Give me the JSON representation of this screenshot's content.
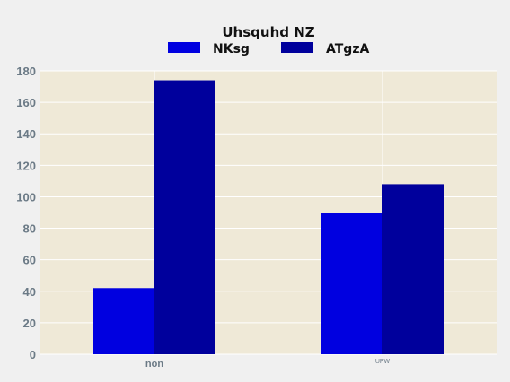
{
  "chart_data": {
    "type": "bar",
    "title": "Uhsquhd NZ",
    "xlabel": "",
    "ylabel": "",
    "categories": [
      "non",
      "UPW"
    ],
    "series": [
      {
        "name": "NKsg",
        "values": [
          42,
          90
        ],
        "color": "#0000e0"
      },
      {
        "name": "ATgzA",
        "values": [
          174,
          108
        ],
        "color": "#00009c"
      }
    ],
    "ylim": [
      0,
      180
    ],
    "yticks": [
      0,
      20,
      40,
      60,
      80,
      100,
      120,
      140,
      160,
      180
    ],
    "grid": true,
    "legend_position": "top-center",
    "plot_background": "#efe9d7",
    "grid_color": "#ffffff"
  }
}
